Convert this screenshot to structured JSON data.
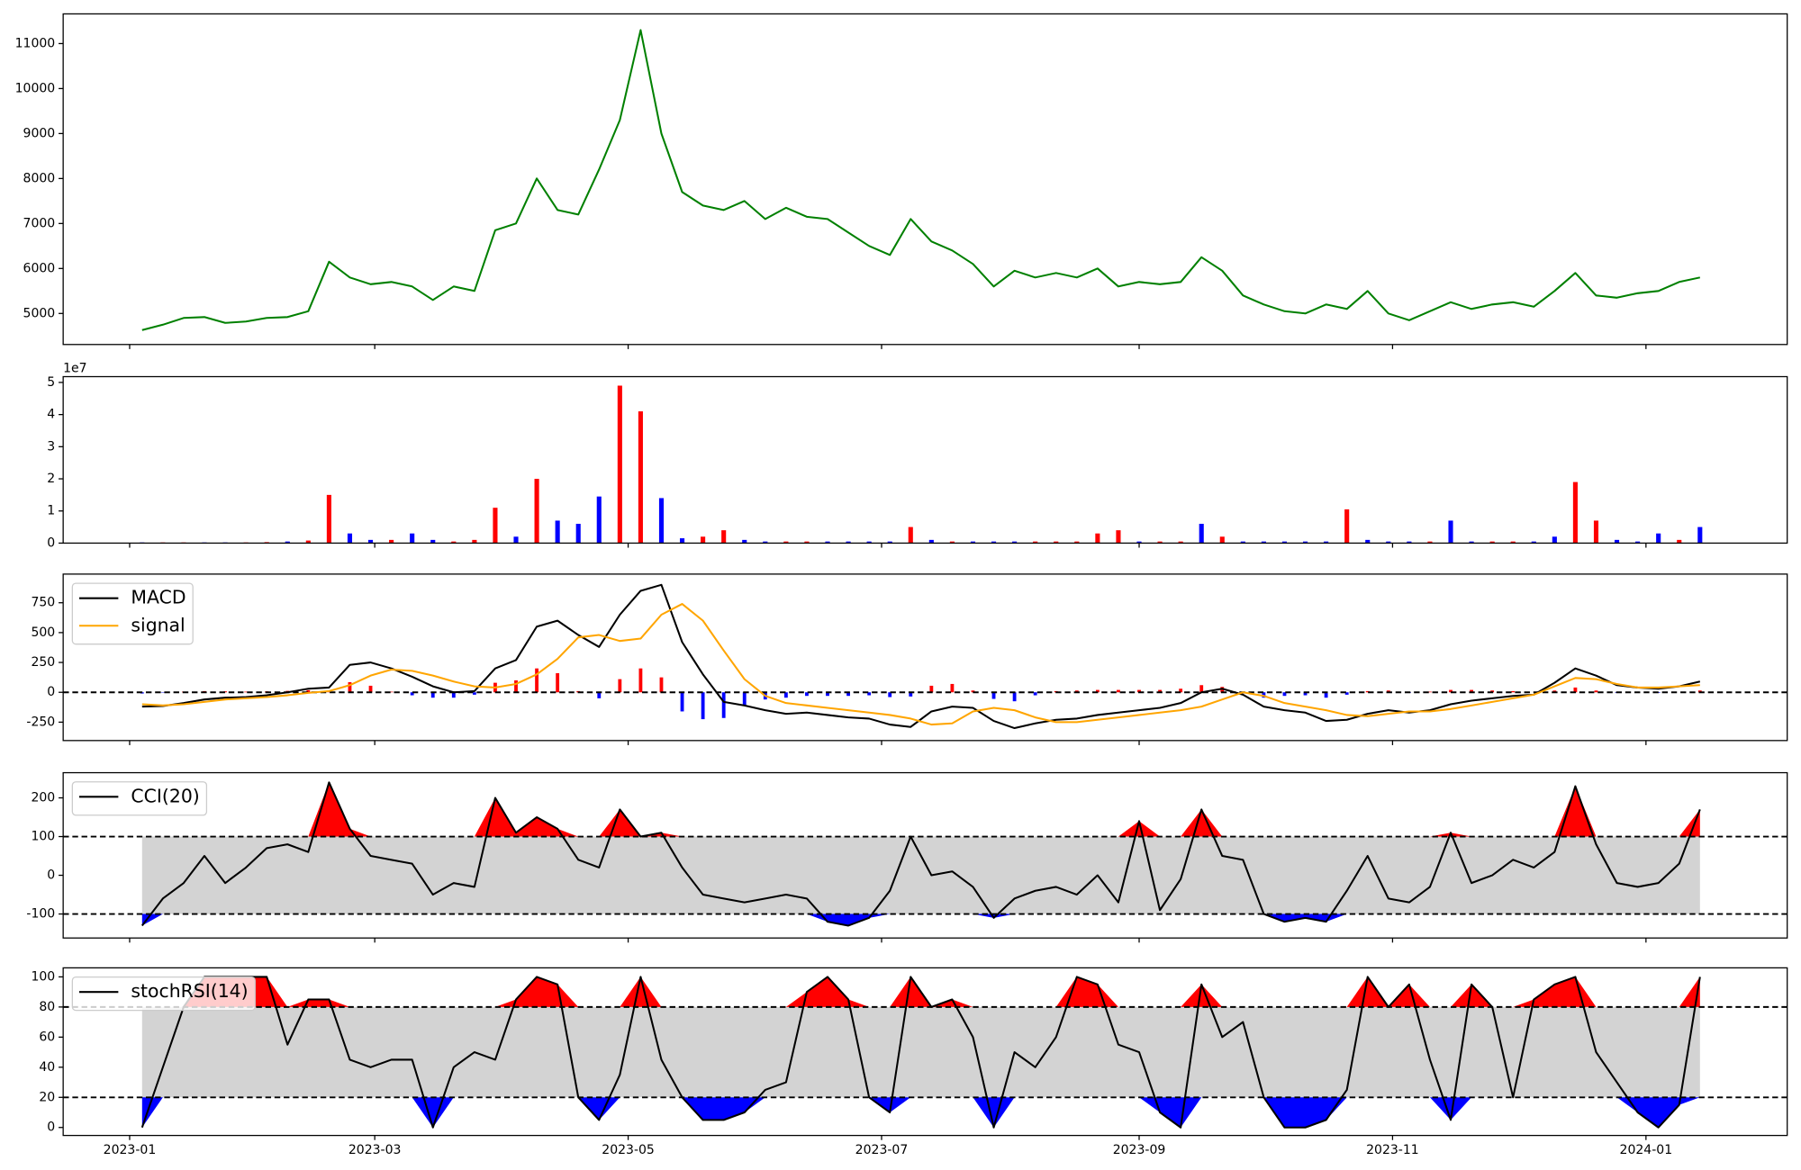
{
  "chart_data": [
    {
      "type": "line",
      "x": [
        3,
        8,
        13,
        18,
        23,
        28,
        33,
        38,
        43,
        48,
        53,
        58,
        63,
        68,
        73,
        78,
        83,
        88,
        93,
        98,
        103,
        108,
        113,
        118,
        123,
        128,
        133,
        138,
        143,
        148,
        153,
        158,
        163,
        168,
        173,
        178,
        183,
        188,
        193,
        198,
        203,
        208,
        213,
        218,
        223,
        228,
        233,
        238,
        243,
        248,
        253,
        258,
        263,
        268,
        273,
        278,
        283,
        288,
        293,
        298,
        303,
        308,
        313,
        318,
        323,
        328,
        333,
        338,
        343,
        348,
        353,
        358,
        363,
        368,
        373,
        378
      ],
      "xlim": [
        -16,
        399
      ],
      "series": [
        {
          "color": "#008000",
          "values": [
            4630,
            4750,
            4900,
            4920,
            4790,
            4820,
            4900,
            4920,
            5050,
            6150,
            5800,
            5650,
            5700,
            5600,
            5300,
            5600,
            5500,
            6850,
            7000,
            8000,
            7300,
            7200,
            8200,
            9300,
            11300,
            9000,
            7700,
            7400,
            7300,
            7500,
            7100,
            7350,
            7150,
            7100,
            6800,
            6500,
            6300,
            7100,
            6600,
            6400,
            6100,
            5600,
            5950,
            5800,
            5900,
            5800,
            6000,
            5600,
            5700,
            5650,
            5700,
            6250,
            5950,
            5400,
            5200,
            5050,
            5000,
            5200,
            5100,
            5500,
            5000,
            4850,
            5050,
            5250,
            5100,
            5200,
            5250,
            5150,
            5500,
            5900,
            5400,
            5350,
            5450,
            5500,
            5700,
            5800
          ]
        }
      ],
      "ylim": [
        4310,
        11660
      ],
      "yticks": [
        5000,
        6000,
        7000,
        8000,
        9000,
        10000,
        11000
      ]
    },
    {
      "type": "bar",
      "x": [
        3,
        8,
        13,
        18,
        23,
        28,
        33,
        38,
        43,
        48,
        53,
        58,
        63,
        68,
        73,
        78,
        83,
        88,
        93,
        98,
        103,
        108,
        113,
        118,
        123,
        128,
        133,
        138,
        143,
        148,
        153,
        158,
        163,
        168,
        173,
        178,
        183,
        188,
        193,
        198,
        203,
        208,
        213,
        218,
        223,
        228,
        233,
        238,
        243,
        248,
        253,
        258,
        263,
        268,
        273,
        278,
        283,
        288,
        293,
        298,
        303,
        308,
        313,
        318,
        323,
        328,
        333,
        338,
        343,
        348,
        353,
        358,
        363,
        368,
        373,
        378
      ],
      "xlim": [
        -16,
        399
      ],
      "values": [
        0.02,
        0.02,
        0.02,
        0.02,
        0.02,
        0.02,
        0.03,
        0.05,
        0.08,
        1.5,
        0.3,
        0.1,
        0.1,
        0.3,
        0.1,
        0.05,
        0.1,
        1.1,
        0.2,
        2.0,
        0.7,
        0.6,
        1.45,
        4.9,
        4.1,
        1.4,
        0.15,
        0.2,
        0.4,
        0.1,
        0.05,
        0.05,
        0.05,
        0.05,
        0.05,
        0.05,
        0.05,
        0.5,
        0.1,
        0.05,
        0.05,
        0.05,
        0.05,
        0.05,
        0.05,
        0.05,
        0.3,
        0.4,
        0.05,
        0.05,
        0.05,
        0.6,
        0.2,
        0.05,
        0.05,
        0.05,
        0.05,
        0.05,
        1.05,
        0.1,
        0.05,
        0.05,
        0.05,
        0.7,
        0.05,
        0.05,
        0.05,
        0.05,
        0.2,
        1.9,
        0.7,
        0.1,
        0.05,
        0.3,
        0.1,
        0.5
      ],
      "colors": [
        "blue",
        "red",
        "red",
        "blue",
        "blue",
        "red",
        "red",
        "blue",
        "red",
        "red",
        "blue",
        "blue",
        "red",
        "blue",
        "blue",
        "red",
        "red",
        "red",
        "blue",
        "red",
        "blue",
        "blue",
        "blue",
        "red",
        "red",
        "blue",
        "blue",
        "red",
        "red",
        "blue",
        "blue",
        "red",
        "red",
        "blue",
        "blue",
        "blue",
        "blue",
        "red",
        "blue",
        "red",
        "blue",
        "blue",
        "blue",
        "red",
        "red",
        "red",
        "red",
        "red",
        "blue",
        "red",
        "red",
        "blue",
        "red",
        "blue",
        "blue",
        "blue",
        "blue",
        "blue",
        "red",
        "blue",
        "blue",
        "blue",
        "red",
        "blue",
        "blue",
        "red",
        "red",
        "blue",
        "blue",
        "red",
        "red",
        "blue",
        "blue",
        "blue",
        "red",
        "blue"
      ],
      "y_offset_label": "1e7",
      "ylim": [
        0,
        5.18
      ],
      "yticks": [
        0,
        1,
        2,
        3,
        4,
        5
      ]
    },
    {
      "type": "line",
      "x": [
        3,
        8,
        13,
        18,
        23,
        28,
        33,
        38,
        43,
        48,
        53,
        58,
        63,
        68,
        73,
        78,
        83,
        88,
        93,
        98,
        103,
        108,
        113,
        118,
        123,
        128,
        133,
        138,
        143,
        148,
        153,
        158,
        163,
        168,
        173,
        178,
        183,
        188,
        193,
        198,
        203,
        208,
        213,
        218,
        223,
        228,
        233,
        238,
        243,
        248,
        253,
        258,
        263,
        268,
        273,
        278,
        283,
        288,
        293,
        298,
        303,
        308,
        313,
        318,
        323,
        328,
        333,
        338,
        343,
        348,
        353,
        358,
        363,
        368,
        373,
        378
      ],
      "xlim": [
        -16,
        399
      ],
      "series": [
        {
          "name": "MACD",
          "color": "#000000",
          "values": [
            -120,
            -115,
            -90,
            -60,
            -45,
            -40,
            -25,
            0,
            30,
            40,
            230,
            250,
            200,
            130,
            50,
            0,
            10,
            200,
            270,
            550,
            600,
            480,
            380,
            650,
            850,
            900,
            420,
            150,
            -80,
            -110,
            -150,
            -180,
            -170,
            -190,
            -210,
            -220,
            -270,
            -290,
            -160,
            -120,
            -130,
            -240,
            -300,
            -260,
            -230,
            -220,
            -190,
            -170,
            -150,
            -130,
            -90,
            0,
            30,
            -20,
            -120,
            -150,
            -170,
            -240,
            -230,
            -180,
            -150,
            -170,
            -150,
            -100,
            -70,
            -50,
            -30,
            -20,
            80,
            200,
            140,
            60,
            40,
            30,
            50,
            90
          ]
        },
        {
          "name": "signal",
          "color": "#ffa500",
          "values": [
            -100,
            -110,
            -100,
            -80,
            -60,
            -50,
            -40,
            -25,
            -5,
            10,
            60,
            140,
            190,
            180,
            140,
            90,
            50,
            40,
            70,
            150,
            280,
            460,
            480,
            430,
            450,
            650,
            740,
            600,
            350,
            110,
            -30,
            -90,
            -110,
            -130,
            -150,
            -170,
            -190,
            -220,
            -270,
            -260,
            -160,
            -130,
            -150,
            -210,
            -250,
            -250,
            -230,
            -210,
            -190,
            -170,
            -150,
            -120,
            -60,
            0,
            -30,
            -90,
            -120,
            -150,
            -190,
            -200,
            -180,
            -160,
            -160,
            -140,
            -110,
            -80,
            -50,
            -20,
            50,
            120,
            110,
            70,
            40,
            40,
            50,
            60
          ]
        }
      ],
      "histogram": {
        "up_color": "#ff0000",
        "down_color": "#0000ff",
        "values": [
          -10,
          -3,
          5,
          10,
          8,
          5,
          8,
          12,
          18,
          15,
          85,
          55,
          5,
          -25,
          -45,
          -45,
          -20,
          80,
          100,
          200,
          160,
          10,
          -50,
          110,
          200,
          125,
          -160,
          -225,
          -215,
          -110,
          -60,
          -45,
          -30,
          -30,
          -30,
          -25,
          -40,
          -35,
          55,
          70,
          15,
          -55,
          -75,
          -25,
          10,
          15,
          20,
          20,
          20,
          20,
          30,
          60,
          45,
          -10,
          -45,
          -30,
          -25,
          -45,
          -20,
          10,
          15,
          -5,
          5,
          20,
          20,
          15,
          10,
          0,
          15,
          40,
          15,
          -5,
          0,
          -5,
          0,
          15
        ]
      },
      "hlines": [
        0
      ],
      "legend": "upper left",
      "ylim": [
        -404,
        990
      ],
      "yticks": [
        -250,
        0,
        250,
        500,
        750
      ]
    },
    {
      "type": "line",
      "x": [
        3,
        8,
        13,
        18,
        23,
        28,
        33,
        38,
        43,
        48,
        53,
        58,
        63,
        68,
        73,
        78,
        83,
        88,
        93,
        98,
        103,
        108,
        113,
        118,
        123,
        128,
        133,
        138,
        143,
        148,
        153,
        158,
        163,
        168,
        173,
        178,
        183,
        188,
        193,
        198,
        203,
        208,
        213,
        218,
        223,
        228,
        233,
        238,
        243,
        248,
        253,
        258,
        263,
        268,
        273,
        278,
        283,
        288,
        293,
        298,
        303,
        308,
        313,
        318,
        323,
        328,
        333,
        338,
        343,
        348,
        353,
        358,
        363,
        368,
        373,
        378
      ],
      "xlim": [
        -16,
        399
      ],
      "series": [
        {
          "name": "CCI(20)",
          "color": "#000000",
          "values": [
            -130,
            -60,
            -20,
            50,
            -20,
            20,
            70,
            80,
            60,
            240,
            120,
            50,
            40,
            30,
            -50,
            -20,
            -30,
            200,
            110,
            150,
            120,
            40,
            20,
            170,
            100,
            110,
            20,
            -50,
            -60,
            -70,
            -60,
            -50,
            -60,
            -120,
            -130,
            -110,
            -40,
            100,
            0,
            10,
            -30,
            -110,
            -60,
            -40,
            -30,
            -50,
            0,
            -70,
            140,
            -90,
            -10,
            170,
            50,
            40,
            -100,
            -120,
            -110,
            -120,
            -40,
            50,
            -60,
            -70,
            -30,
            110,
            -20,
            0,
            40,
            20,
            60,
            230,
            80,
            -20,
            -30,
            -20,
            30,
            170
          ]
        }
      ],
      "band": {
        "upper": 100,
        "lower": -100,
        "fill": "#d3d3d3",
        "upper_color": "#ff0000",
        "lower_color": "#0000ff"
      },
      "legend": "upper left",
      "ylim": [
        -162,
        265
      ],
      "yticks": [
        -100,
        0,
        100,
        200
      ]
    },
    {
      "type": "line",
      "x": [
        3,
        8,
        13,
        18,
        23,
        28,
        33,
        38,
        43,
        48,
        53,
        58,
        63,
        68,
        73,
        78,
        83,
        88,
        93,
        98,
        103,
        108,
        113,
        118,
        123,
        128,
        133,
        138,
        143,
        148,
        153,
        158,
        163,
        168,
        173,
        178,
        183,
        188,
        193,
        198,
        203,
        208,
        213,
        218,
        223,
        228,
        233,
        238,
        243,
        248,
        253,
        258,
        263,
        268,
        273,
        278,
        283,
        288,
        293,
        298,
        303,
        308,
        313,
        318,
        323,
        328,
        333,
        338,
        343,
        348,
        353,
        358,
        363,
        368,
        373,
        378
      ],
      "xlim": [
        -16,
        399
      ],
      "series": [
        {
          "name": "stochRSI(14)",
          "color": "#000000",
          "values": [
            0,
            40,
            80,
            100,
            100,
            100,
            100,
            55,
            85,
            85,
            45,
            40,
            45,
            45,
            0,
            40,
            50,
            45,
            85,
            100,
            95,
            20,
            5,
            35,
            100,
            45,
            20,
            5,
            5,
            10,
            25,
            30,
            90,
            100,
            85,
            20,
            10,
            100,
            80,
            85,
            60,
            0,
            50,
            40,
            60,
            100,
            95,
            55,
            50,
            10,
            0,
            95,
            60,
            70,
            20,
            0,
            0,
            5,
            25,
            100,
            80,
            95,
            45,
            5,
            95,
            80,
            20,
            85,
            95,
            100,
            50,
            30,
            10,
            0,
            15,
            100
          ]
        }
      ],
      "band": {
        "upper": 80,
        "lower": 20,
        "fill": "#d3d3d3",
        "upper_color": "#ff0000",
        "lower_color": "#0000ff"
      },
      "legend": "upper left",
      "ylim": [
        -5.3,
        106
      ],
      "yticks": [
        0,
        20,
        40,
        60,
        80,
        100
      ],
      "xticks": [
        {
          "value": 0,
          "label": "2023-01"
        },
        {
          "value": 59,
          "label": "2023-03"
        },
        {
          "value": 120,
          "label": "2023-05"
        },
        {
          "value": 181,
          "label": "2023-07"
        },
        {
          "value": 243,
          "label": "2023-09"
        },
        {
          "value": 304,
          "label": "2023-11"
        },
        {
          "value": 365,
          "label": "2024-01"
        }
      ]
    }
  ]
}
